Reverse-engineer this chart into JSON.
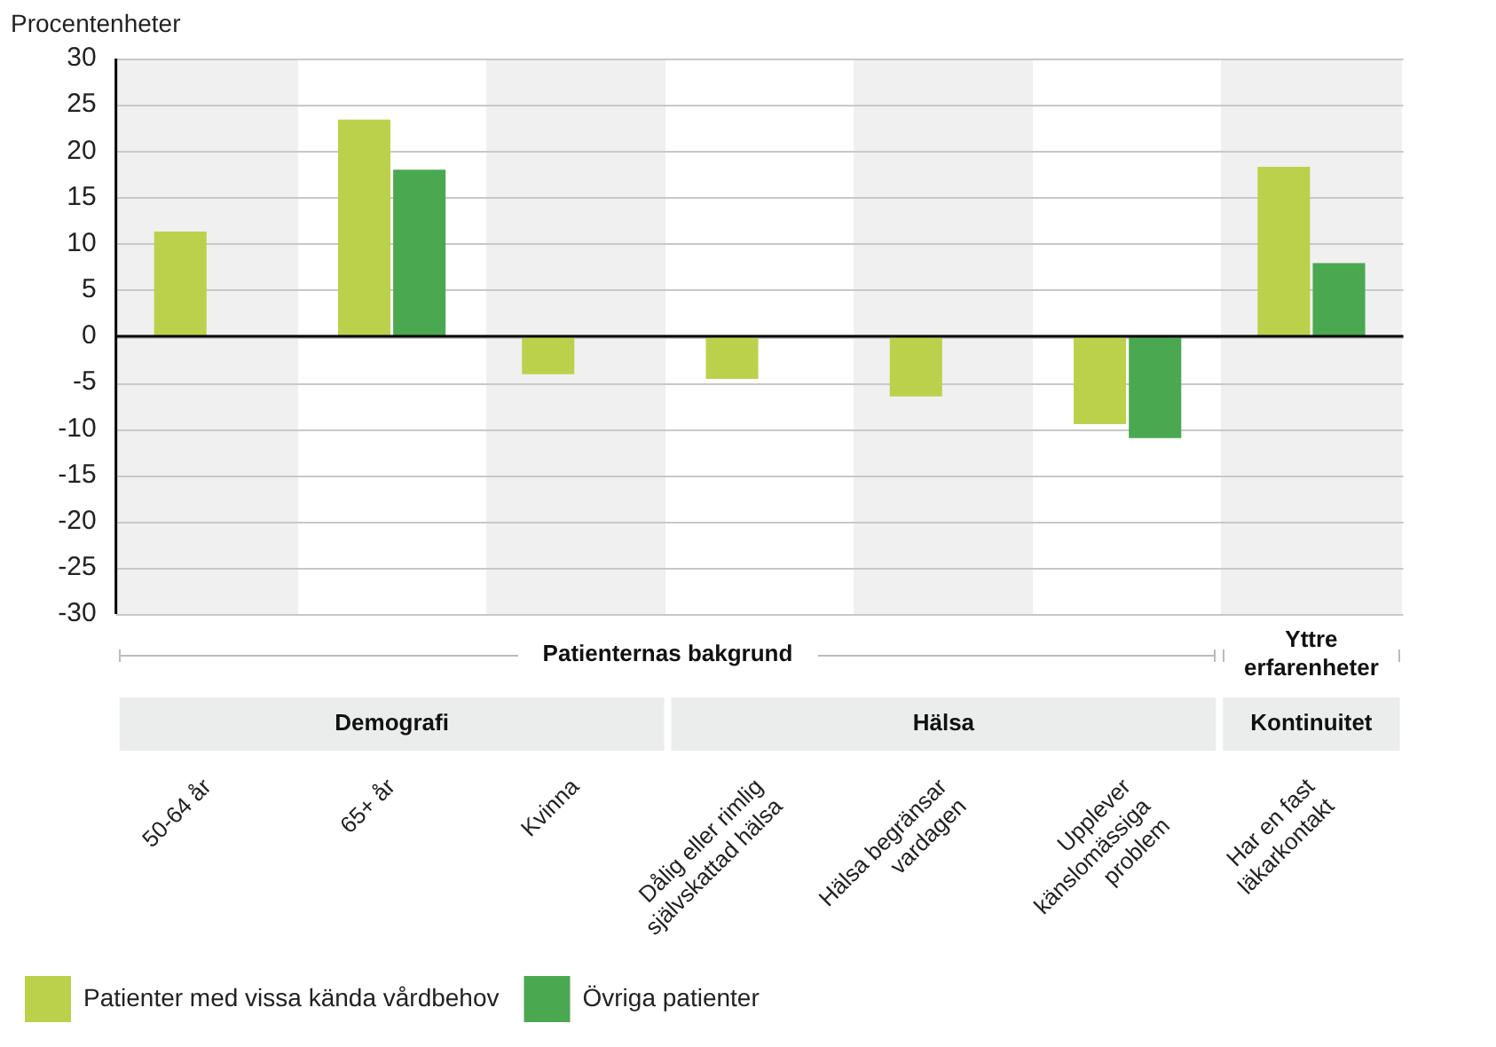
{
  "chart_data": {
    "type": "bar",
    "ylabel": "Procentenheter",
    "categories": [
      "50-64 år",
      "65+ år",
      "Kvinna",
      "Dålig eller rimlig självskattad hälsa",
      "Hälsa begränsar vardagen",
      "Upplever känslomässiga problem",
      "Har en fast läkarkontakt"
    ],
    "series": [
      {
        "name": "Patienter med vissa kända vårdbehov",
        "color": "#bcd14b",
        "values": [
          11.3,
          23.4,
          -4.1,
          -4.6,
          -6.5,
          -9.5,
          18.3
        ]
      },
      {
        "name": "Övriga patienter",
        "color": "#4aa851",
        "values": [
          null,
          18.0,
          null,
          null,
          null,
          -11.0,
          7.9
        ]
      }
    ],
    "ylim": [
      -30,
      30
    ],
    "yticks": [
      -30,
      -25,
      -20,
      -15,
      -10,
      -5,
      0,
      5,
      10,
      15,
      20,
      25,
      30
    ],
    "grid": "y",
    "legend": "bottom left",
    "annotations": [
      "Patienternas bakgrund",
      "Yttre erfarenheter",
      "Demografi",
      "Hälsa",
      "Kontinuitet"
    ]
  }
}
